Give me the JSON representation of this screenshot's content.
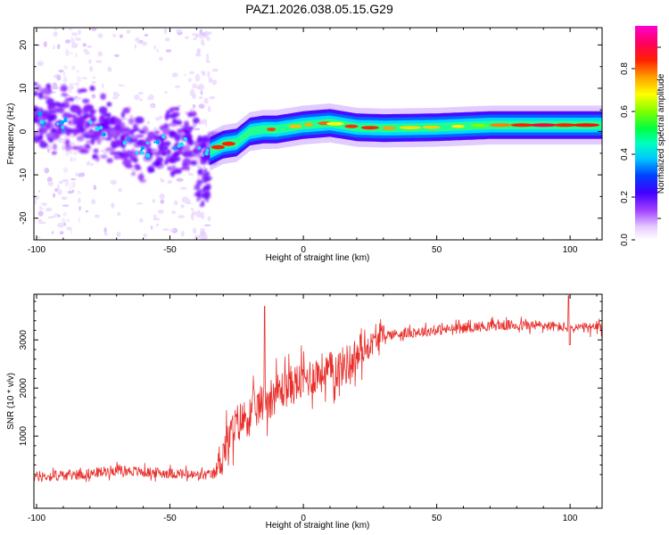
{
  "title": "PAZ1.2026.038.05.15.G29",
  "chart_data": [
    {
      "type": "heatmap",
      "xlabel": "Height of straight line (km)",
      "ylabel": "Frequency (Hz)",
      "xlim": [
        -101,
        112
      ],
      "ylim": [
        -25,
        24
      ],
      "xticks": [
        -100,
        -50,
        0,
        50,
        100
      ],
      "yticks": [
        20,
        10,
        0,
        -10,
        -20
      ],
      "ridge": {
        "x": [
          -100,
          -90,
          -80,
          -70,
          -60,
          -50,
          -45,
          -40,
          -35,
          -30,
          -25,
          -20,
          -15,
          -10,
          -5,
          0,
          10,
          20,
          30,
          50,
          70,
          90,
          112
        ],
        "freq": [
          3,
          2.5,
          1.5,
          -0.5,
          -5,
          -2,
          -2.5,
          -3.5,
          -4.5,
          -3,
          -2.5,
          0,
          0.5,
          0.5,
          1,
          1.5,
          2,
          1,
          0.8,
          1,
          1.5,
          1.5,
          1.5
        ]
      },
      "colorbar": {
        "label": "Normalized spectral amplitude",
        "ticks": [
          "0.0",
          "0.2",
          "0.4",
          "0.6",
          "0.8"
        ],
        "range": [
          0,
          1
        ]
      }
    },
    {
      "type": "line",
      "xlabel": "Height of straight line (km)",
      "ylabel": "SNR (10 * v/v)",
      "xlim": [
        -101,
        112
      ],
      "ylim": [
        -500,
        3950
      ],
      "xticks": [
        -100,
        -50,
        0,
        50,
        100
      ],
      "yticks": [
        1000,
        2000,
        3000
      ],
      "series": [
        {
          "name": "SNR",
          "color": "#e8302c",
          "x": [
            -100,
            -90,
            -80,
            -70,
            -60,
            -50,
            -40,
            -33,
            -30,
            -25,
            -20,
            -15,
            -10,
            -5,
            0,
            5,
            10,
            15,
            20,
            25,
            30,
            40,
            50,
            60,
            70,
            80,
            90,
            100,
            112
          ],
          "y": [
            150,
            180,
            220,
            300,
            250,
            230,
            180,
            200,
            700,
            1250,
            1450,
            1700,
            1900,
            2050,
            2150,
            2300,
            2350,
            2450,
            2650,
            2900,
            3100,
            3150,
            3200,
            3250,
            3300,
            3300,
            3300,
            3250,
            3250
          ]
        }
      ]
    }
  ]
}
